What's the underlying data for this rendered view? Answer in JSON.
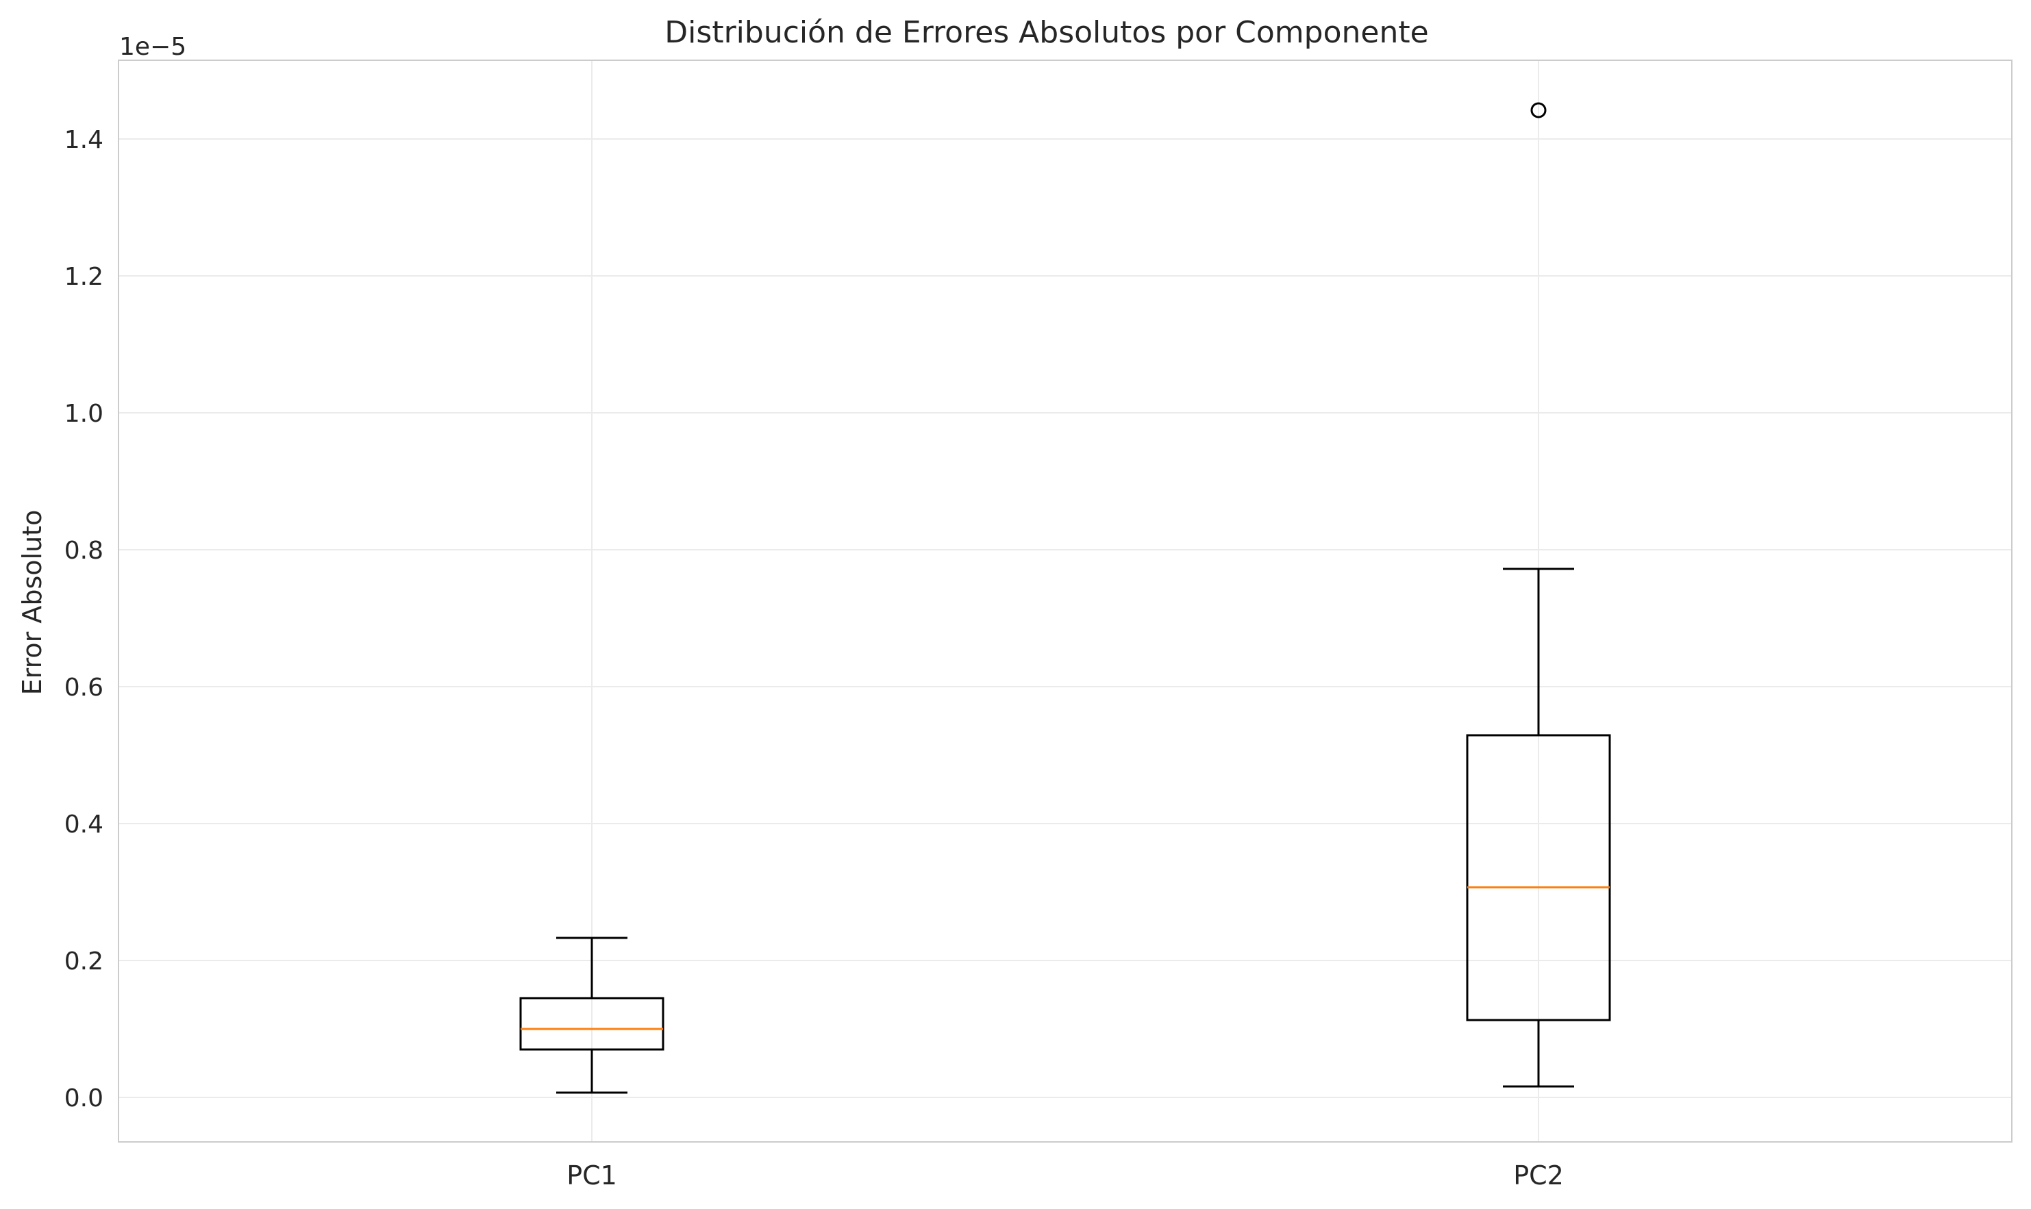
{
  "chart_data": {
    "type": "box",
    "title": "Distribución de Errores Absolutos por Componente",
    "xlabel": "",
    "ylabel": "Error Absoluto",
    "y_offset_label": "1e−5",
    "y_scale_factor": 1e-05,
    "ylim": [
      -0.065,
      1.515
    ],
    "y_ticks": [
      0.0,
      0.2,
      0.4,
      0.6,
      0.8,
      1.0,
      1.2,
      1.4
    ],
    "y_tick_labels": [
      "0.0",
      "0.2",
      "0.4",
      "0.6",
      "0.8",
      "1.0",
      "1.2",
      "1.4"
    ],
    "grid": true,
    "legend": "none",
    "categories": [
      "PC1",
      "PC2"
    ],
    "boxes": [
      {
        "category": "PC1",
        "whisker_low": 0.007,
        "q1": 0.07,
        "median": 0.1,
        "q3": 0.145,
        "whisker_high": 0.233,
        "outliers": []
      },
      {
        "category": "PC2",
        "whisker_low": 0.016,
        "q1": 0.113,
        "median": 0.307,
        "q3": 0.529,
        "whisker_high": 0.772,
        "outliers": [
          1.442
        ]
      }
    ],
    "colors": {
      "box": "#000000",
      "median": "#ff7f0e",
      "grid": "#ebebeb",
      "frame": "#cccccc",
      "text": "#262626"
    }
  }
}
